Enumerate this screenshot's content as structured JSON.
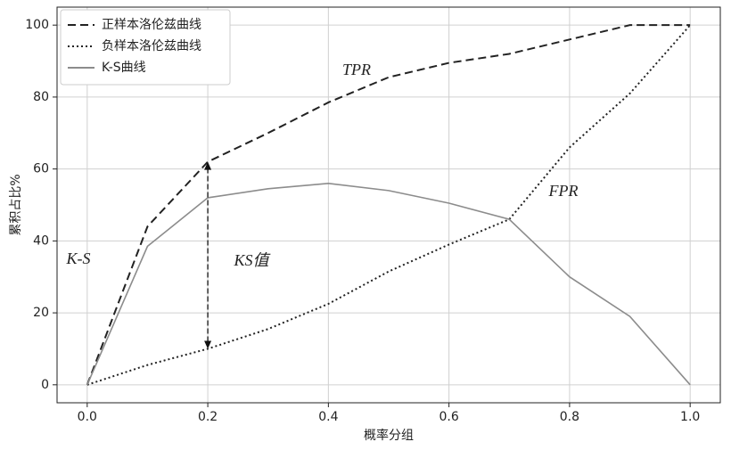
{
  "chart_data": {
    "type": "line",
    "x_label": "概率分组",
    "y_label": "累积占比%",
    "x": [
      0,
      0.1,
      0.2,
      0.3,
      0.4,
      0.5,
      0.6,
      0.7,
      0.8,
      0.9,
      1.0
    ],
    "series": [
      {
        "name": "正样本洛伦兹曲线",
        "color": "#222222",
        "style": "dashed",
        "values": [
          0,
          44,
          62,
          70,
          78.5,
          85.5,
          89.5,
          92,
          96,
          100,
          100
        ]
      },
      {
        "name": "负样本洛伦兹曲线",
        "color": "#222222",
        "style": "dotted",
        "values": [
          0,
          5.5,
          10,
          15.5,
          22.5,
          31.5,
          39,
          46,
          66,
          81,
          100
        ]
      },
      {
        "name": "K-S曲线",
        "color": "#8c8c8c",
        "style": "solid",
        "values": [
          0,
          38.5,
          52,
          54.5,
          56,
          54,
          50.5,
          46,
          30,
          19,
          0
        ]
      }
    ],
    "annotations": [
      "TPR",
      "FPR",
      "K-S",
      "KS值"
    ],
    "xlim": [
      -0.05,
      1.05
    ],
    "ylim": [
      -5,
      105
    ],
    "xticks": [
      {
        "value": 0,
        "label": "0.0"
      },
      {
        "value": 0.2,
        "label": "0.2"
      },
      {
        "value": 0.4,
        "label": "0.4"
      },
      {
        "value": 0.6,
        "label": "0.6"
      },
      {
        "value": 0.8,
        "label": "0.8"
      },
      {
        "value": 1.0,
        "label": "1.0"
      }
    ],
    "yticks": [
      0,
      20,
      40,
      60,
      80,
      100
    ],
    "grid": true,
    "legend": "upper left"
  }
}
